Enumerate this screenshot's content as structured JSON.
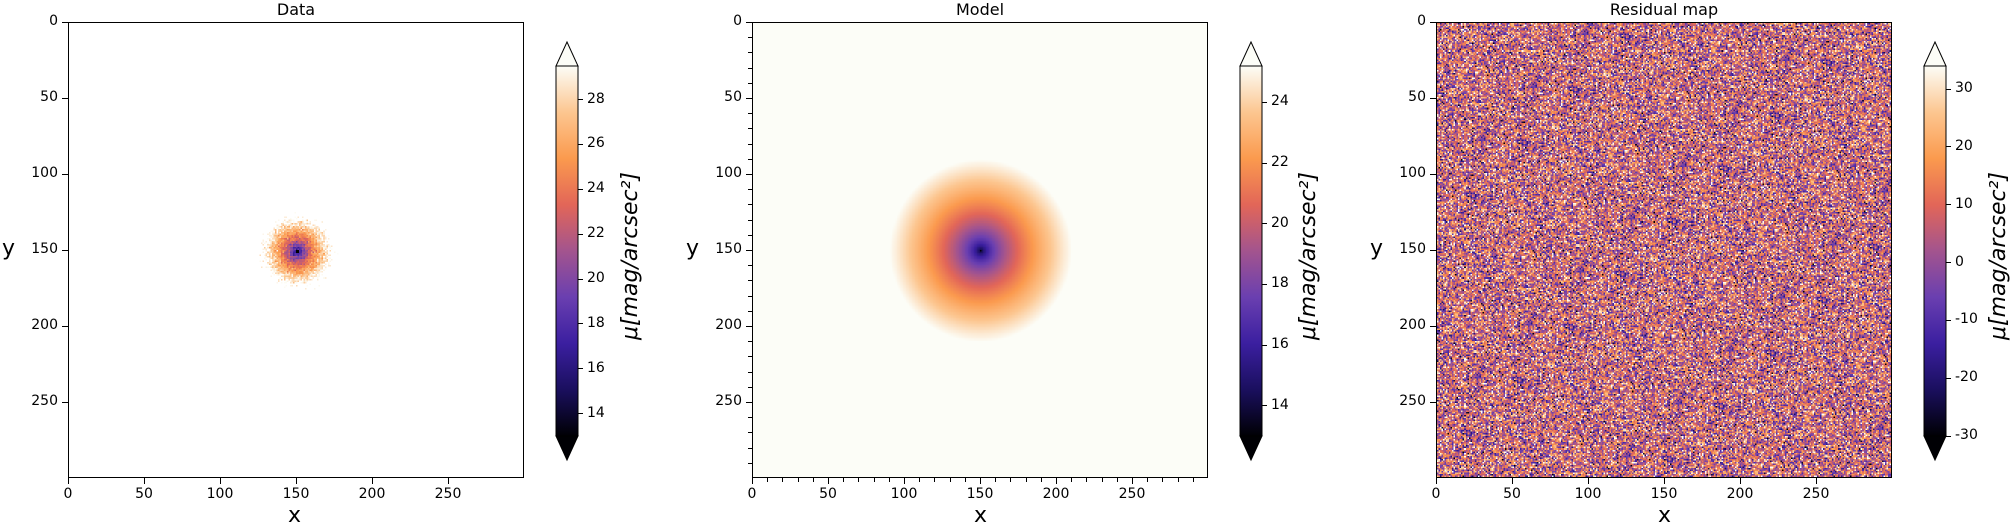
{
  "chart_data": [
    {
      "type": "heatmap",
      "title": "Data",
      "xlabel": "x",
      "ylabel": "y",
      "xlim": [
        0,
        300
      ],
      "ylim": [
        300,
        0
      ],
      "x_ticks": [
        "0",
        "50",
        "100",
        "150",
        "200",
        "250"
      ],
      "y_ticks": [
        "0",
        "50",
        "100",
        "150",
        "200",
        "250"
      ],
      "center": [
        150,
        150
      ],
      "colormap": "magma-like",
      "colorbar": {
        "label": "μ[mag/arcsec²]",
        "range": [
          13,
          29.5
        ],
        "ticks": [
          "14",
          "16",
          "18",
          "20",
          "22",
          "24",
          "26",
          "28"
        ],
        "extend": "both"
      },
      "description_values": {
        "core_min": 13,
        "background_noise": "sparse purple pixels on white"
      }
    },
    {
      "type": "heatmap",
      "title": "Model",
      "xlabel": "x",
      "ylabel": "y",
      "xlim": [
        0,
        300
      ],
      "ylim": [
        300,
        0
      ],
      "x_ticks": [
        "0",
        "50",
        "100",
        "150",
        "200",
        "250"
      ],
      "y_ticks": [
        "0",
        "50",
        "100",
        "150",
        "200",
        "250"
      ],
      "center": [
        150,
        150
      ],
      "colormap": "magma-like",
      "colorbar": {
        "label": "μ[mag/arcsec²]",
        "range": [
          13,
          25.2
        ],
        "ticks": [
          "14",
          "16",
          "18",
          "20",
          "22",
          "24"
        ],
        "extend": "both"
      }
    },
    {
      "type": "heatmap",
      "title": "Residual map",
      "xlabel": "x",
      "ylabel": "y",
      "xlim": [
        0,
        300
      ],
      "ylim": [
        300,
        0
      ],
      "x_ticks": [
        "0",
        "50",
        "100",
        "150",
        "200",
        "250"
      ],
      "y_ticks": [
        "0",
        "50",
        "100",
        "150",
        "200",
        "250"
      ],
      "colormap": "magma-like",
      "colorbar": {
        "label": "μ[mag/arcsec²]",
        "range": [
          -30,
          34
        ],
        "ticks": [
          "-30",
          "-20",
          "-10",
          "0",
          "10",
          "20",
          "30"
        ],
        "extend": "both"
      }
    }
  ],
  "colors": {
    "cmap_stops": [
      "#000004",
      "#1a0f5e",
      "#3b1fa0",
      "#6a3fb0",
      "#a3548e",
      "#e26658",
      "#fb9a4e",
      "#fcc690",
      "#fcfdf7"
    ]
  }
}
